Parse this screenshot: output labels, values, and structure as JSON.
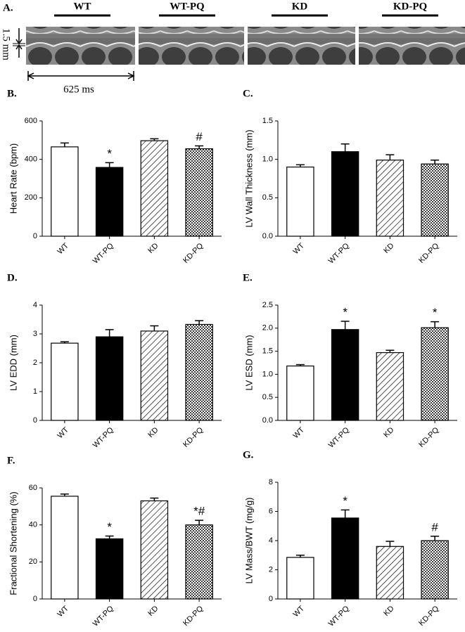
{
  "panel_a": {
    "letter": "A.",
    "groups": [
      "WT",
      "WT-PQ",
      "KD",
      "KD-PQ"
    ],
    "scale_y": "1.5 mm",
    "scale_x": "625 ms"
  },
  "chart_data": [
    {
      "type": "bar",
      "letter": "B.",
      "ylabel": "Heart Rate (bpm)",
      "categories": [
        "WT",
        "WT-PQ",
        "KD",
        "KD-PQ"
      ],
      "values": [
        465,
        358,
        497,
        455
      ],
      "errors": [
        20,
        25,
        10,
        15
      ],
      "annotations": [
        null,
        "*",
        null,
        "#"
      ],
      "colors": [
        "#ffffff",
        "#000000",
        "hatch",
        "dots"
      ],
      "ylim": [
        0,
        600
      ],
      "yticks": [
        0,
        200,
        400,
        600
      ]
    },
    {
      "type": "bar",
      "letter": "C.",
      "ylabel": "LV Wall Thickness (mm)",
      "categories": [
        "WT",
        "WT-PQ",
        "KD",
        "KD-PQ"
      ],
      "values": [
        0.9,
        1.1,
        0.99,
        0.94
      ],
      "errors": [
        0.03,
        0.1,
        0.07,
        0.05
      ],
      "annotations": [
        null,
        null,
        null,
        null
      ],
      "colors": [
        "#ffffff",
        "#000000",
        "hatch",
        "dots"
      ],
      "ylim": [
        0,
        1.5
      ],
      "yticks": [
        {
          "value": 0,
          "label": "0.0"
        },
        0.5,
        {
          "value": 1,
          "label": "1.0"
        },
        1.5
      ]
    },
    {
      "type": "bar",
      "letter": "D.",
      "ylabel": "LV EDD (mm)",
      "categories": [
        "WT",
        "WT-PQ",
        "KD",
        "KD-PQ"
      ],
      "values": [
        2.68,
        2.9,
        3.1,
        3.33
      ],
      "errors": [
        0.05,
        0.25,
        0.18,
        0.13
      ],
      "annotations": [
        null,
        null,
        null,
        null
      ],
      "colors": [
        "#ffffff",
        "#000000",
        "hatch",
        "dots"
      ],
      "ylim": [
        0,
        4
      ],
      "yticks": [
        0,
        1,
        2,
        3,
        4
      ]
    },
    {
      "type": "bar",
      "letter": "E.",
      "ylabel": "LV ESD (mm)",
      "categories": [
        "WT",
        "WT-PQ",
        "KD",
        "KD-PQ"
      ],
      "values": [
        1.18,
        1.97,
        1.47,
        2.01
      ],
      "errors": [
        0.03,
        0.18,
        0.05,
        0.13
      ],
      "annotations": [
        null,
        "*",
        null,
        "*"
      ],
      "colors": [
        "#ffffff",
        "#000000",
        "hatch",
        "dots"
      ],
      "ylim": [
        0,
        2.5
      ],
      "yticks": [
        {
          "value": 0,
          "label": "0.0"
        },
        0.5,
        {
          "value": 1,
          "label": "1.0"
        },
        1.5,
        {
          "value": 2,
          "label": "2.0"
        },
        2.5
      ]
    },
    {
      "type": "bar",
      "letter": "F.",
      "ylabel": "Fractional Shortening (%)",
      "categories": [
        "WT",
        "WT-PQ",
        "KD",
        "KD-PQ"
      ],
      "values": [
        55.5,
        32.5,
        53,
        40
      ],
      "errors": [
        1.2,
        1.5,
        1.5,
        2.5
      ],
      "annotations": [
        null,
        "*",
        null,
        "*#"
      ],
      "colors": [
        "#ffffff",
        "#000000",
        "hatch",
        "dots"
      ],
      "ylim": [
        0,
        60
      ],
      "yticks": [
        0,
        20,
        40,
        60
      ]
    },
    {
      "type": "bar",
      "letter": "G.",
      "ylabel": "LV Mass/BWT (mg/g)",
      "categories": [
        "WT",
        "WT-PQ",
        "KD",
        "KD-PQ"
      ],
      "values": [
        2.85,
        5.55,
        3.6,
        4.0
      ],
      "errors": [
        0.15,
        0.55,
        0.35,
        0.3
      ],
      "annotations": [
        null,
        "*",
        null,
        "#"
      ],
      "colors": [
        "#ffffff",
        "#000000",
        "hatch",
        "dots"
      ],
      "ylim": [
        0,
        8
      ],
      "yticks": [
        0,
        2,
        4,
        6,
        8
      ]
    }
  ]
}
